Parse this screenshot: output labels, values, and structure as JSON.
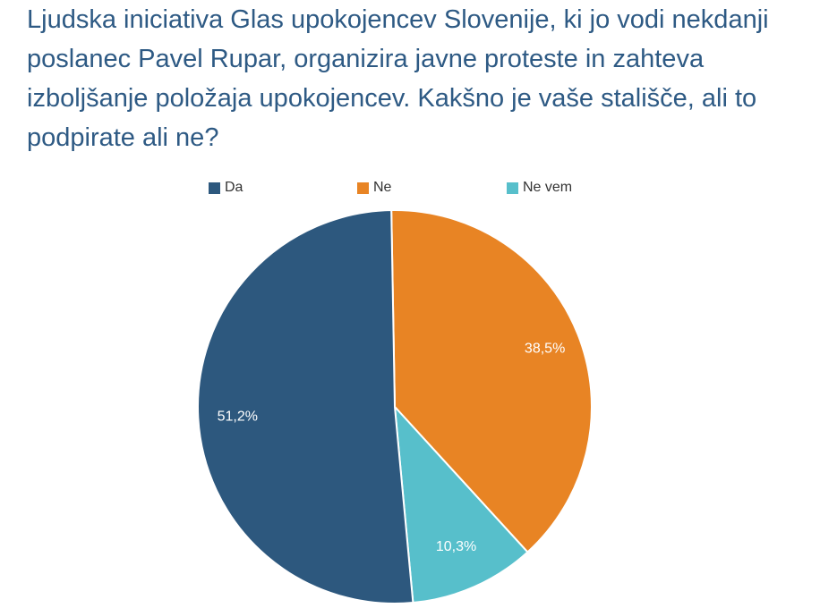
{
  "title": "Ljudska iniciativa Glas upokojencev Slovenije, ki jo vodi nekdanji poslanec Pavel Rupar, organizira javne proteste in zahteva izboljšanje položaja upokojencev. Kakšno je vaše stališče, ali to podpirate ali ne?",
  "chart_data": {
    "type": "pie",
    "title": "Ljudska iniciativa Glas upokojencev Slovenije, ki jo vodi nekdanji poslanec Pavel Rupar, organizira javne proteste in zahteva izboljšanje položaja upokojencev. Kakšno je vaše stališče, ali to podpirate ali ne?",
    "legend_position": "top",
    "slices": [
      {
        "label": "Da",
        "value": 51.2,
        "display": "51,2%",
        "color": "#2d587e"
      },
      {
        "label": "Ne",
        "value": 38.5,
        "display": "38,5%",
        "color": "#e88424"
      },
      {
        "label": "Ne vem",
        "value": 10.3,
        "display": "10,3%",
        "color": "#57bfcb"
      }
    ]
  }
}
